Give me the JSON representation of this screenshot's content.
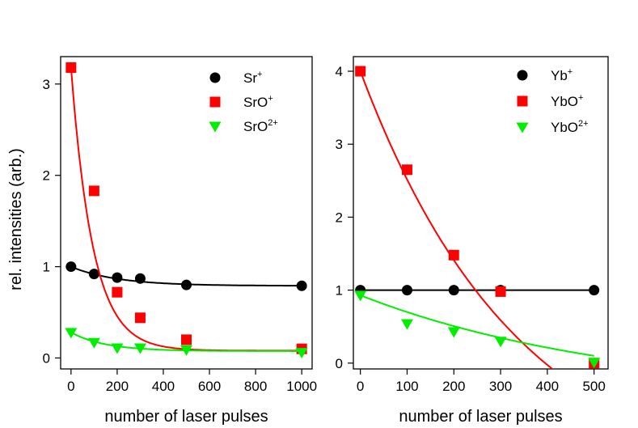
{
  "chart_data": [
    {
      "type": "scatter",
      "xlabel": "number of laser pulses",
      "ylabel": "rel. intensities (arb.)",
      "xlim": [
        -45,
        1045
      ],
      "ylim": [
        -0.12,
        3.3
      ],
      "xticks": [
        0,
        200,
        400,
        600,
        800,
        1000
      ],
      "yticks": [
        0,
        1,
        2,
        3
      ],
      "xtick_labels": [
        "0",
        "200",
        "400",
        "600",
        "800",
        "1000"
      ],
      "ytick_labels": [
        "0",
        "1",
        "2",
        "3"
      ],
      "legend_position": "top-right",
      "grid": false,
      "series": [
        {
          "name_base": "Sr",
          "name_sup": "+",
          "marker": "circle",
          "color": "#000000",
          "x": [
            0,
            100,
            200,
            300,
            500,
            1000
          ],
          "y": [
            1.0,
            0.92,
            0.88,
            0.87,
            0.8,
            0.79
          ],
          "fit": {
            "model": "exp",
            "a": 0.79,
            "b": 0.21,
            "tau": 200
          }
        },
        {
          "name_base": "SrO",
          "name_sup": "+",
          "marker": "square",
          "color": "#ff0000",
          "x": [
            0,
            100,
            200,
            300,
            500,
            1000
          ],
          "y": [
            3.18,
            1.83,
            0.72,
            0.44,
            0.2,
            0.1
          ],
          "fit": {
            "model": "exp",
            "a": 0.08,
            "b": 3.1,
            "tau": 95
          }
        },
        {
          "name_base": "SrO",
          "name_sup": "2+",
          "marker": "triangle-down",
          "color": "#00ee00",
          "x": [
            0,
            100,
            200,
            300,
            500,
            1000
          ],
          "y": [
            0.28,
            0.17,
            0.11,
            0.11,
            0.09,
            0.06
          ],
          "fit": {
            "model": "exp",
            "a": 0.075,
            "b": 0.205,
            "tau": 150
          }
        }
      ]
    },
    {
      "type": "scatter",
      "xlabel": "number of laser pulses",
      "ylabel": "",
      "xlim": [
        -15,
        530
      ],
      "ylim": [
        -0.08,
        4.2
      ],
      "xticks": [
        0,
        100,
        200,
        300,
        400,
        500
      ],
      "yticks": [
        0,
        1,
        2,
        3,
        4
      ],
      "xtick_labels": [
        "0",
        "100",
        "200",
        "300",
        "400",
        "500"
      ],
      "ytick_labels": [
        "0",
        "1",
        "2",
        "3",
        "4"
      ],
      "legend_position": "top-right",
      "grid": false,
      "series": [
        {
          "name_base": "Yb",
          "name_sup": "+",
          "marker": "circle",
          "color": "#000000",
          "x": [
            0,
            100,
            200,
            300,
            500
          ],
          "y": [
            1.0,
            1.0,
            1.0,
            1.0,
            1.0
          ],
          "fit": {
            "model": "const",
            "a": 1.0
          }
        },
        {
          "name_base": "YbO",
          "name_sup": "+",
          "marker": "square",
          "color": "#ff0000",
          "x": [
            0,
            100,
            200,
            300,
            500
          ],
          "y": [
            4.0,
            2.65,
            1.48,
            0.98,
            0.0
          ],
          "fit": {
            "model": "exp",
            "a": -1.81,
            "b": 5.81,
            "tau": 339
          }
        },
        {
          "name_base": "YbO",
          "name_sup": "2+",
          "marker": "triangle-down",
          "color": "#00ee00",
          "x": [
            0,
            100,
            200,
            300,
            500
          ],
          "y": [
            0.93,
            0.54,
            0.43,
            0.3,
            0.01
          ],
          "fit": {
            "model": "exp",
            "a": -0.47,
            "b": 1.4,
            "tau": 556
          }
        }
      ]
    }
  ]
}
